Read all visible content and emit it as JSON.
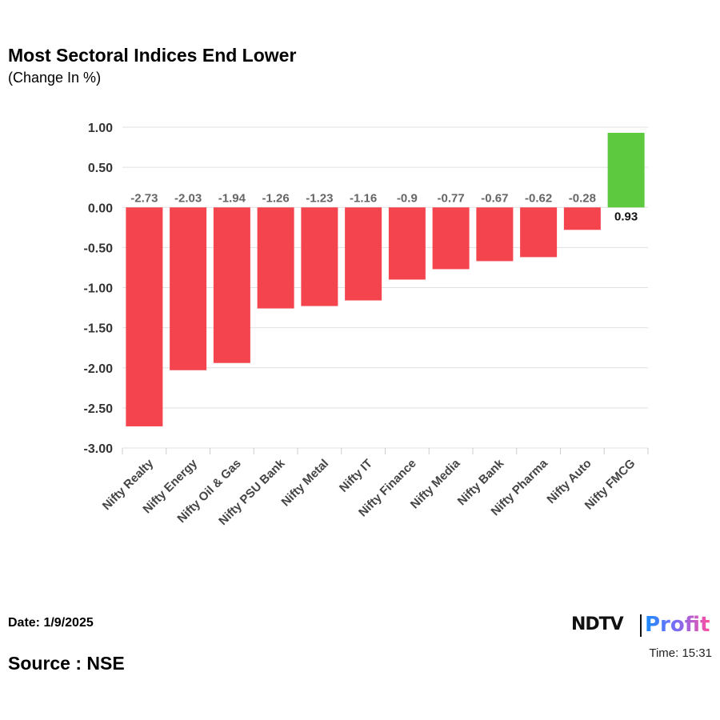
{
  "title": "Most Sectoral Indices End Lower",
  "subtitle": "(Change In %)",
  "footer": {
    "date": "Date: 1/9/2025",
    "time": "Time: 15:31",
    "source": "Source : NSE",
    "logo_text": "NDTV Profit",
    "logo_ndtv": "NDTV",
    "logo_profit": "Profit"
  },
  "colors": {
    "negative": "#f4444e",
    "positive": "#5cc93f",
    "grid": "#e0e0e0"
  },
  "chart_data": {
    "type": "bar",
    "categories": [
      "Nifty Realty",
      "Nifty Energy",
      "Nifty Oil & Gas",
      "Nifty PSU Bank",
      "Nifty Metal",
      "Nifty IT",
      "Nifty Finance",
      "Nifty Media",
      "Nifty Bank",
      "Nifty Pharma",
      "Nifty Auto",
      "Nifty FMCG"
    ],
    "values": [
      -2.73,
      -2.03,
      -1.94,
      -1.26,
      -1.23,
      -1.16,
      -0.9,
      -0.77,
      -0.67,
      -0.62,
      -0.28,
      0.93
    ],
    "labels": [
      "-2.73",
      "-2.03",
      "-1.94",
      "-1.26",
      "-1.23",
      "-1.16",
      "-0.9",
      "-0.77",
      "-0.67",
      "-0.62",
      "-0.28",
      "0.93"
    ],
    "yticks": [
      "1.00",
      "0.50",
      "0.00",
      "-0.50",
      "-1.00",
      "-1.50",
      "-2.00",
      "-2.50",
      "-3.00"
    ],
    "ylim": [
      -3,
      1
    ],
    "grid": true,
    "legend": "none"
  }
}
